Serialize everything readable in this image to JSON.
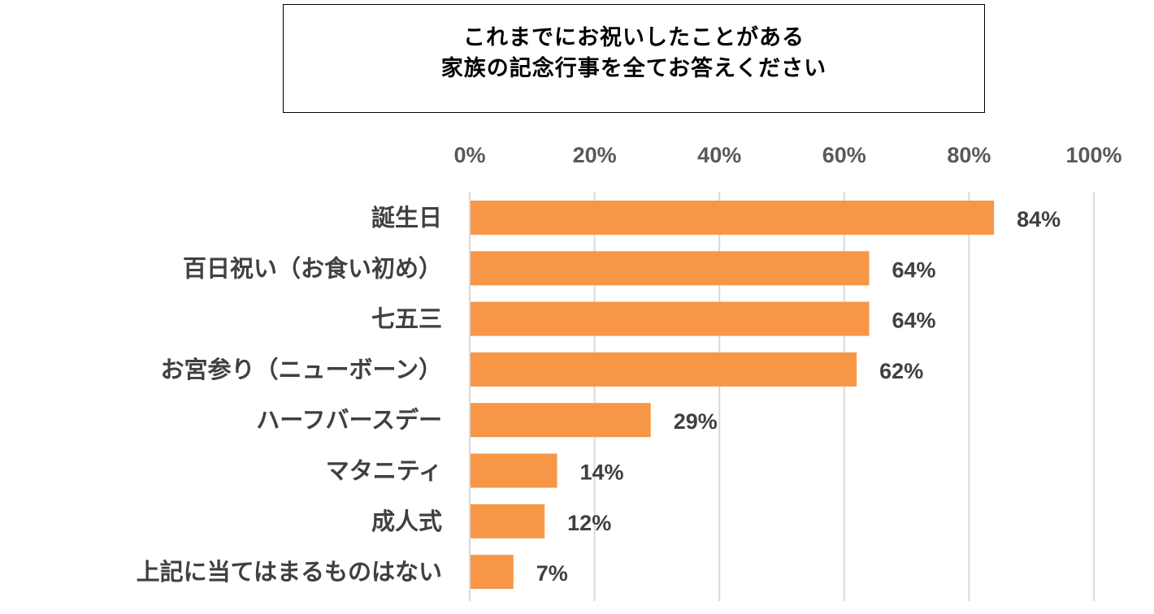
{
  "chart_data": {
    "type": "bar",
    "orientation": "horizontal",
    "title": [
      "これまでにお祝いしたことがある",
      "家族の記念行事を全てお答えください"
    ],
    "categories": [
      "誕生日",
      "百日祝い（お食い初め）",
      "七五三",
      "お宮参り（ニューボーン）",
      "ハーフバースデー",
      "マタニティ",
      "成人式",
      "上記に当てはまるものはない"
    ],
    "values": [
      84,
      64,
      64,
      62,
      29,
      14,
      12,
      7
    ],
    "value_labels": [
      "84%",
      "64%",
      "64%",
      "62%",
      "29%",
      "14%",
      "12%",
      "7%"
    ],
    "ticks": [
      0,
      20,
      40,
      60,
      80,
      100
    ],
    "tick_labels": [
      "0%",
      "20%",
      "40%",
      "60%",
      "80%",
      "100%"
    ],
    "xlim": [
      0,
      100
    ],
    "x_axis_position": "top",
    "grid": true,
    "legend": "none",
    "colors": {
      "bar": "#F79646",
      "grid": "#D9D9D9",
      "axis_text": "#595959",
      "category_text": "#404040",
      "value_text": "#404040"
    }
  }
}
